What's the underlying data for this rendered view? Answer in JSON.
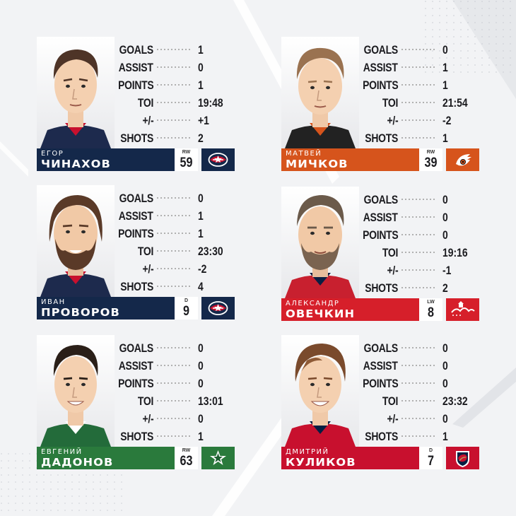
{
  "stat_labels": [
    "GOALS",
    "ASSIST",
    "POINTS",
    "TOI",
    "+/-",
    "SHOTS"
  ],
  "colors": {
    "columbus": "#14284a",
    "philadelphia": "#d6541c",
    "washington": "#d61f2a",
    "dallas": "#2a7a3c",
    "florida": "#c8102e"
  },
  "players": [
    {
      "first_name": "Егор",
      "last_name": "Чинахов",
      "position": "RW",
      "number": "59",
      "team_logo": "columbus-logo",
      "team_color": "#14284a",
      "jersey_color": "#1d2a4d",
      "hair_color": "#4e3427",
      "beard": false,
      "stats": {
        "goals": "1",
        "assist": "0",
        "points": "1",
        "toi": "19:48",
        "plus_minus": "+1",
        "shots": "2"
      }
    },
    {
      "first_name": "Матвей",
      "last_name": "Мичков",
      "position": "RW",
      "number": "39",
      "team_logo": "flyers-logo",
      "team_color": "#d6541c",
      "jersey_color": "#222222",
      "hair_color": "#9a7250",
      "beard": false,
      "stats": {
        "goals": "0",
        "assist": "1",
        "points": "1",
        "toi": "21:54",
        "plus_minus": "-2",
        "shots": "1"
      }
    },
    {
      "first_name": "Иван",
      "last_name": "Проворов",
      "position": "D",
      "number": "9",
      "team_logo": "columbus-logo",
      "team_color": "#14284a",
      "jersey_color": "#1d2a4d",
      "hair_color": "#5a3a28",
      "beard": true,
      "stats": {
        "goals": "0",
        "assist": "1",
        "points": "1",
        "toi": "23:30",
        "plus_minus": "-2",
        "shots": "4"
      }
    },
    {
      "first_name": "Александр",
      "last_name": "Овечкин",
      "position": "LW",
      "number": "8",
      "team_logo": "capitals-logo",
      "team_color": "#d61f2a",
      "jersey_color": "#c8202f",
      "hair_color": "#6b5a4a",
      "beard": true,
      "stats": {
        "goals": "0",
        "assist": "0",
        "points": "0",
        "toi": "19:16",
        "plus_minus": "-1",
        "shots": "2"
      }
    },
    {
      "first_name": "Евгений",
      "last_name": "Дадонов",
      "position": "RW",
      "number": "63",
      "team_logo": "stars-logo",
      "team_color": "#2a7a3c",
      "jersey_color": "#236b3a",
      "hair_color": "#2a1f18",
      "beard": false,
      "stats": {
        "goals": "0",
        "assist": "0",
        "points": "0",
        "toi": "13:01",
        "plus_minus": "0",
        "shots": "1"
      }
    },
    {
      "first_name": "Дмитрий",
      "last_name": "Куликов",
      "position": "D",
      "number": "7",
      "team_logo": "panthers-logo",
      "team_color": "#c8102e",
      "jersey_color": "#c8102e",
      "hair_color": "#7a4a2c",
      "beard": false,
      "stats": {
        "goals": "0",
        "assist": "0",
        "points": "0",
        "toi": "23:32",
        "plus_minus": "0",
        "shots": "1"
      }
    }
  ]
}
